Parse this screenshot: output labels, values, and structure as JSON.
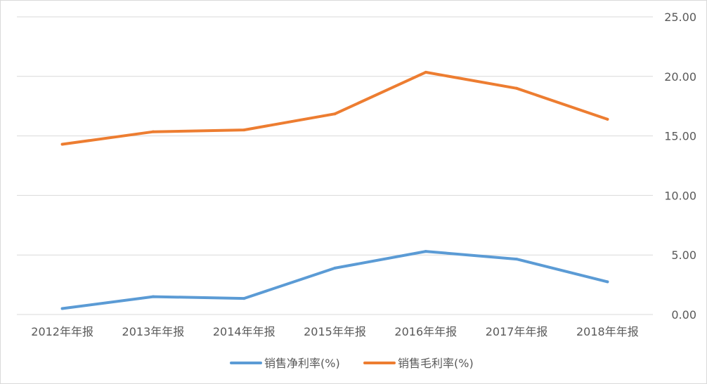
{
  "chart_data": {
    "type": "line",
    "title": "",
    "xlabel": "",
    "ylabel": "",
    "categories": [
      "2012年年报",
      "2013年年报",
      "2014年年报",
      "2015年年报",
      "2016年年报",
      "2017年年报",
      "2018年年报"
    ],
    "series": [
      {
        "name": "销售净利率(%)",
        "color": "#5b9bd5",
        "values": [
          0.5,
          1.5,
          1.35,
          3.9,
          5.3,
          4.65,
          2.75
        ]
      },
      {
        "name": "销售毛利率(%)",
        "color": "#ed7d31",
        "values": [
          14.3,
          15.35,
          15.5,
          16.85,
          20.35,
          19.0,
          16.4
        ]
      }
    ],
    "ylim": [
      0,
      25
    ],
    "y_ticks": [
      "0.00",
      "5.00",
      "10.00",
      "15.00",
      "20.00",
      "25.00"
    ],
    "y_axis_position": "right",
    "grid": true,
    "legend_position": "bottom"
  }
}
